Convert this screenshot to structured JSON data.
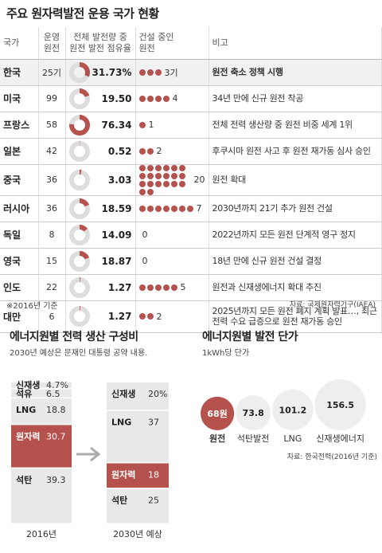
{
  "title": "주요 원자력발전 운용 국가 현황",
  "table": {
    "headers": {
      "country": "국가",
      "operating": [
        "운영",
        "원전"
      ],
      "share": [
        "전체 발전량 중",
        "원전 발전 점유율"
      ],
      "building": [
        "건설 중인",
        "원전"
      ],
      "note": "비고"
    },
    "rows": [
      {
        "country": "한국",
        "operating": "25기",
        "share": 31.73,
        "share_label": "31.73%",
        "building": 3,
        "building_label": "3기",
        "note": "원전 축소 정책 시행",
        "highlight": true
      },
      {
        "country": "미국",
        "operating": "99",
        "share": 19.5,
        "share_label": "19.50",
        "building": 4,
        "building_label": "4",
        "note": "34년 만에 신규 원전 착공"
      },
      {
        "country": "프랑스",
        "operating": "58",
        "share": 76.34,
        "share_label": "76.34",
        "building": 1,
        "building_label": "1",
        "note": "전체 전력 생산량 중 원전 비중 세계 1위"
      },
      {
        "country": "일본",
        "operating": "42",
        "share": 0.52,
        "share_label": "0.52",
        "building": 2,
        "building_label": "2",
        "note": "후쿠시마 원전 사고 후 원전 재가동 심사 승인"
      },
      {
        "country": "중국",
        "operating": "36",
        "share": 3.03,
        "share_label": "3.03",
        "building": 20,
        "building_label": "20",
        "note": "원전 확대"
      },
      {
        "country": "러시아",
        "operating": "36",
        "share": 18.59,
        "share_label": "18.59",
        "building": 7,
        "building_label": "7",
        "note": "2030년까지 21기 추가 원전 건설"
      },
      {
        "country": "독일",
        "operating": "8",
        "share": 14.09,
        "share_label": "14.09",
        "building": 0,
        "building_label": "0",
        "note": "2022년까지 모든 원전 단계적 영구 정지"
      },
      {
        "country": "영국",
        "operating": "15",
        "share": 18.87,
        "share_label": "18.87",
        "building": 0,
        "building_label": "0",
        "note": "18년 만에 신규 원전 건설 결정"
      },
      {
        "country": "인도",
        "operating": "22",
        "share": 1.27,
        "share_label": "1.27",
        "building": 5,
        "building_label": "5",
        "note": "원전과 신재생에너지 확대 추진"
      },
      {
        "country": "대만",
        "operating": "6",
        "share": 1.27,
        "share_label": "1.27",
        "building": 2,
        "building_label": "2",
        "note": "2025년까지 모든 원전 폐지 계획 발표…, 최근 전력 수요 급증으로 원전 재가동 승인"
      }
    ]
  },
  "footnote_left": "※2016년 기준",
  "footnote_right": "자료: 국제원자력기구(IAEA)",
  "chart_data": [
    {
      "type": "bar",
      "title": "에너지원별 전력 생산 구성비",
      "subtitle": "2030년 예상은 문재인 대통령 공약 내용.",
      "categories": [
        "2016년",
        "2030년 예상"
      ],
      "series": [
        {
          "name": "신재생",
          "label": "4.7%",
          "values": [
            4.7,
            20
          ],
          "labels": [
            "4.7%",
            "20%"
          ]
        },
        {
          "name": "석유",
          "label": "6.5",
          "values": [
            6.5,
            null
          ],
          "labels": [
            "6.5",
            ""
          ]
        },
        {
          "name": "LNG",
          "values": [
            18.8,
            37
          ],
          "labels": [
            "18.8",
            "37"
          ]
        },
        {
          "name": "원자력",
          "values": [
            30.7,
            18
          ],
          "labels": [
            "30.7",
            "18"
          ]
        },
        {
          "name": "석탄",
          "values": [
            39.3,
            25
          ],
          "labels": [
            "39.3",
            "25"
          ]
        }
      ],
      "highlight_series": "원자력",
      "highlight_color": "#b5524d",
      "base_color": "#e9e9e9"
    },
    {
      "type": "bubble",
      "title": "에너지원별 발전 단가",
      "subtitle": "1kWh당 단가",
      "categories": [
        "원전",
        "석탄발전",
        "LNG",
        "신재생에너지"
      ],
      "values": [
        68,
        73.8,
        101.2,
        156.5
      ],
      "labels": [
        "68원",
        "73.8",
        "101.2",
        "156.5"
      ],
      "source": "자료: 한국전력(2016년 기준)",
      "highlight_color": "#b5524d",
      "base_color": "#eeeeee"
    }
  ]
}
